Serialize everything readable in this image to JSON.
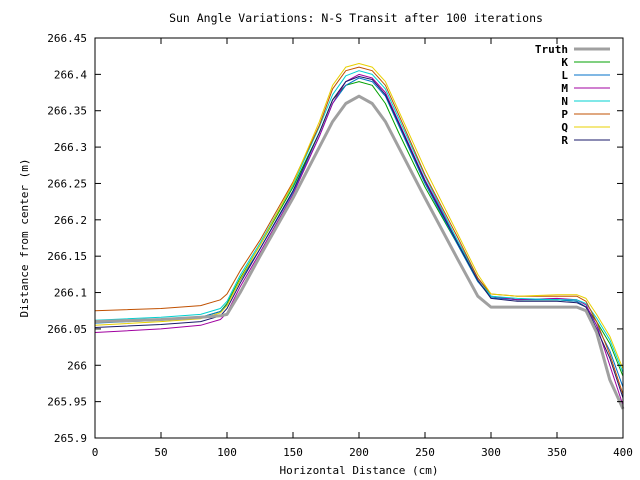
{
  "chart_data": {
    "type": "line",
    "title": "Sun Angle Variations: N-S Transit after 100 iterations",
    "xlabel": "Horizontal Distance (cm)",
    "ylabel": "Distance from center (m)",
    "xlim": [
      0,
      400
    ],
    "ylim": [
      265.9,
      266.45
    ],
    "xticks": [
      0,
      50,
      100,
      150,
      200,
      250,
      300,
      350,
      400
    ],
    "xtick_labels": [
      "0",
      "50",
      "100",
      "150",
      "200",
      "250",
      "300",
      "350",
      "400"
    ],
    "yticks": [
      265.9,
      265.95,
      266,
      266.05,
      266.1,
      266.15,
      266.2,
      266.25,
      266.3,
      266.35,
      266.4,
      266.45
    ],
    "ytick_labels": [
      "265.9",
      "265.95",
      "266",
      "266.05",
      "266.1",
      "266.15",
      "266.2",
      "266.25",
      "266.3",
      "266.35",
      "266.4",
      "266.45"
    ],
    "grid": false,
    "legend_position": "top-right",
    "x": [
      0,
      50,
      80,
      95,
      100,
      110,
      125,
      150,
      170,
      180,
      190,
      200,
      210,
      220,
      230,
      250,
      275,
      290,
      300,
      320,
      350,
      365,
      372,
      380,
      390,
      400
    ],
    "series": [
      {
        "name": "Truth",
        "color": "#a0a0a0",
        "width": 3,
        "values": [
          266.06,
          266.063,
          266.066,
          266.068,
          266.07,
          266.1,
          266.15,
          266.23,
          266.3,
          266.335,
          266.36,
          266.37,
          266.36,
          266.335,
          266.3,
          266.23,
          266.145,
          266.095,
          266.08,
          266.08,
          266.08,
          266.08,
          266.075,
          266.045,
          265.98,
          265.94
        ]
      },
      {
        "name": "K",
        "color": "#00a000",
        "width": 1,
        "values": [
          266.06,
          266.063,
          266.066,
          266.074,
          266.085,
          266.12,
          266.165,
          266.245,
          266.32,
          266.365,
          266.385,
          266.39,
          266.385,
          266.36,
          266.32,
          266.245,
          266.165,
          266.115,
          266.095,
          266.09,
          266.09,
          266.088,
          266.08,
          266.06,
          266.03,
          265.985
        ]
      },
      {
        "name": "L",
        "color": "#0072c8",
        "width": 1,
        "values": [
          266.058,
          266.062,
          266.066,
          266.074,
          266.083,
          266.117,
          266.16,
          266.238,
          266.315,
          266.36,
          266.385,
          266.395,
          266.39,
          266.37,
          266.33,
          266.25,
          266.165,
          266.115,
          266.093,
          266.09,
          266.09,
          266.088,
          266.08,
          266.055,
          266.02,
          265.97
        ]
      },
      {
        "name": "M",
        "color": "#a000a0",
        "width": 1,
        "values": [
          266.045,
          266.05,
          266.055,
          266.063,
          266.072,
          266.108,
          266.155,
          266.235,
          266.315,
          266.36,
          266.39,
          266.4,
          266.395,
          266.375,
          266.335,
          266.255,
          266.17,
          266.12,
          266.095,
          266.09,
          266.092,
          266.09,
          266.083,
          266.055,
          266.0,
          265.945
        ]
      },
      {
        "name": "N",
        "color": "#00d0d0",
        "width": 1,
        "values": [
          266.062,
          266.066,
          266.07,
          266.078,
          266.088,
          266.124,
          266.168,
          266.248,
          266.328,
          266.372,
          266.398,
          266.405,
          266.4,
          266.38,
          266.34,
          266.26,
          266.17,
          266.12,
          266.095,
          266.092,
          266.09,
          266.09,
          266.085,
          266.065,
          266.035,
          265.99
        ]
      },
      {
        "name": "P",
        "color": "#c05000",
        "width": 1,
        "values": [
          266.075,
          266.078,
          266.082,
          266.09,
          266.098,
          266.13,
          266.172,
          266.252,
          266.33,
          266.38,
          266.405,
          266.41,
          266.405,
          266.385,
          266.345,
          266.262,
          266.175,
          266.12,
          266.098,
          266.095,
          266.095,
          266.095,
          266.088,
          266.06,
          266.015,
          265.96
        ]
      },
      {
        "name": "Q",
        "color": "#e8d000",
        "width": 1,
        "values": [
          266.055,
          266.06,
          266.064,
          266.072,
          266.082,
          266.118,
          266.165,
          266.25,
          266.335,
          266.385,
          266.41,
          266.415,
          266.41,
          266.39,
          266.35,
          266.27,
          266.18,
          266.125,
          266.098,
          266.095,
          266.097,
          266.097,
          266.092,
          266.07,
          266.04,
          265.995
        ]
      },
      {
        "name": "R",
        "color": "#1a1a6a",
        "width": 1,
        "values": [
          266.052,
          266.056,
          266.06,
          266.068,
          266.078,
          266.113,
          266.16,
          266.24,
          266.32,
          266.365,
          266.39,
          266.397,
          266.393,
          266.372,
          266.333,
          266.253,
          266.167,
          266.117,
          266.092,
          266.088,
          266.088,
          266.086,
          266.08,
          266.05,
          266.01,
          265.955
        ]
      }
    ]
  }
}
